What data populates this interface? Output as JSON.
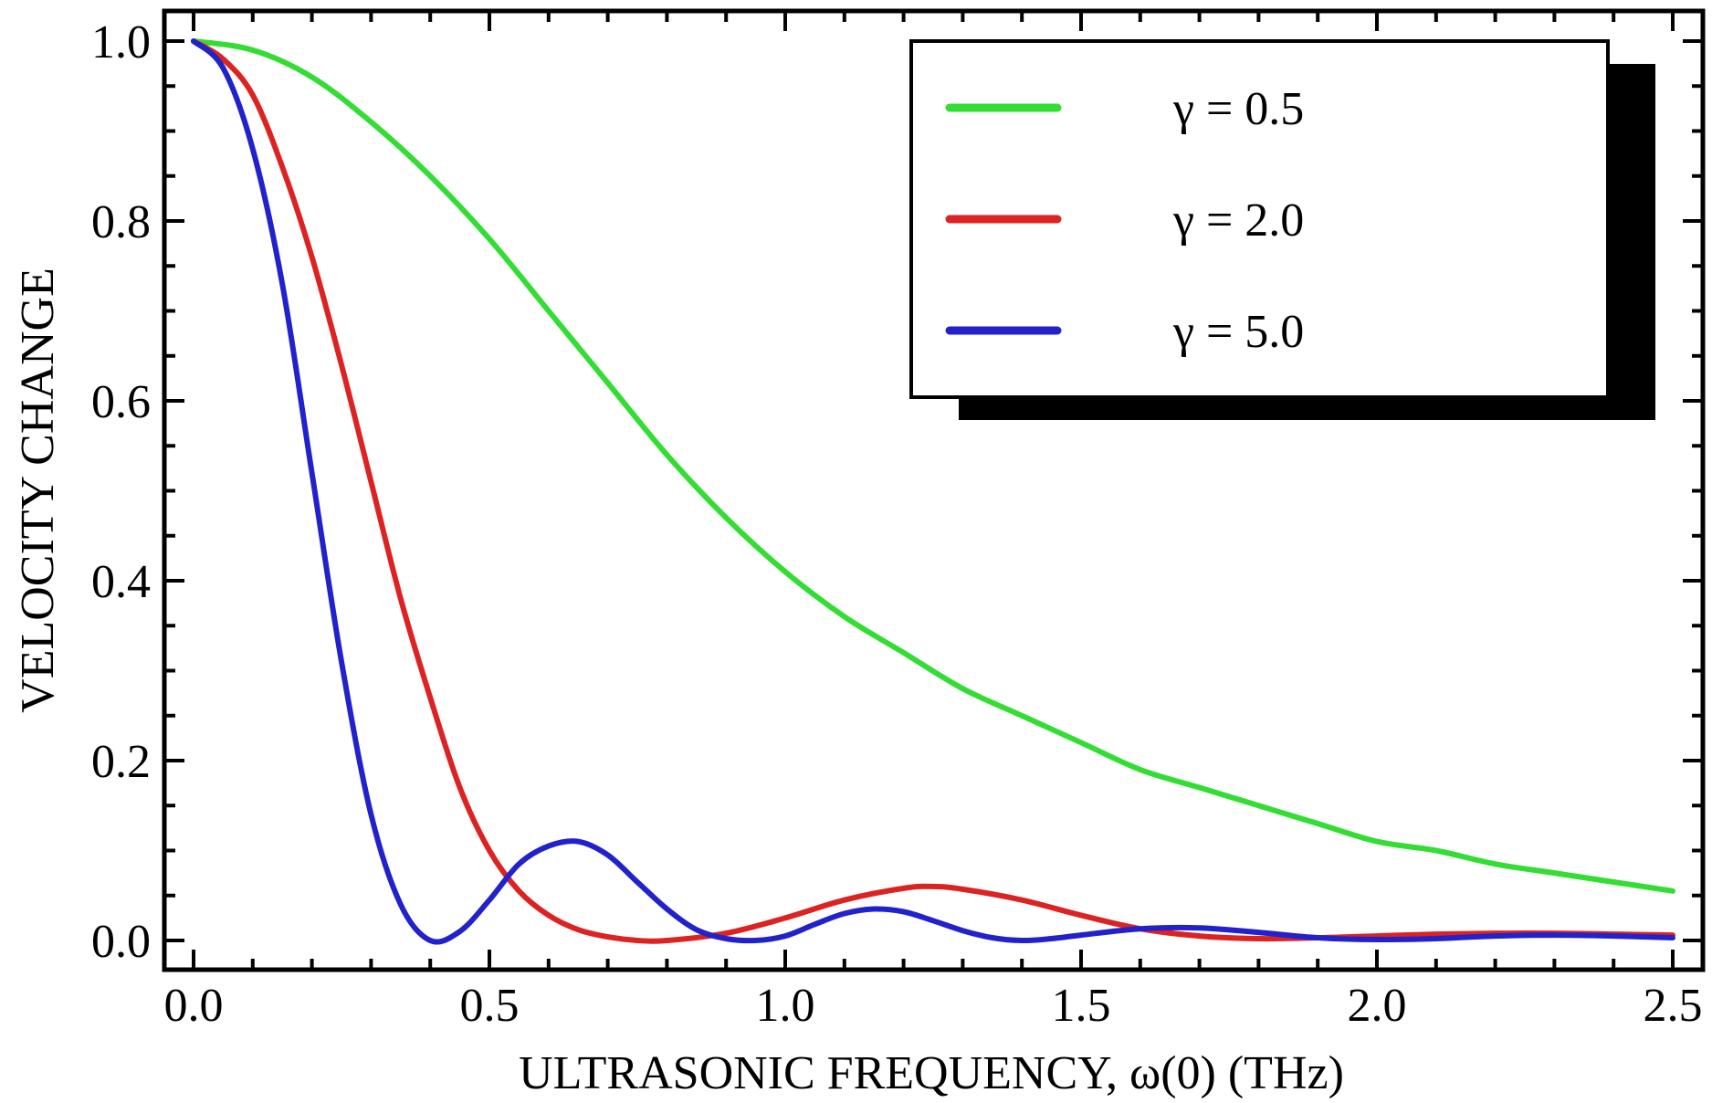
{
  "chart_data": {
    "type": "line",
    "title": "",
    "xlabel": "ULTRASONIC FREQUENCY, ω(0) (THz)",
    "ylabel": "VELOCITY CHANGE",
    "xlim": [
      0,
      2.5
    ],
    "ylim": [
      0,
      1.0
    ],
    "x_ticks": [
      "0.0",
      "0.5",
      "1.0",
      "1.5",
      "2.0",
      "2.5"
    ],
    "y_ticks": [
      "0.0",
      "0.2",
      "0.4",
      "0.6",
      "0.8",
      "1.0"
    ],
    "grid": false,
    "legend_position": "top-right",
    "series": [
      {
        "name": "γ = 0.5",
        "color": "#33dd33",
        "x": [
          0,
          0.1,
          0.2,
          0.3,
          0.4,
          0.5,
          0.6,
          0.7,
          0.8,
          0.9,
          1.0,
          1.1,
          1.2,
          1.3,
          1.4,
          1.5,
          1.6,
          1.7,
          1.8,
          1.9,
          2.0,
          2.1,
          2.2,
          2.3,
          2.4,
          2.5
        ],
        "y": [
          1.0,
          0.99,
          0.96,
          0.91,
          0.85,
          0.78,
          0.7,
          0.62,
          0.54,
          0.47,
          0.41,
          0.36,
          0.32,
          0.28,
          0.25,
          0.22,
          0.19,
          0.17,
          0.15,
          0.13,
          0.11,
          0.1,
          0.085,
          0.075,
          0.065,
          0.055
        ]
      },
      {
        "name": "γ = 2.0",
        "color": "#dd2222",
        "x": [
          0,
          0.05,
          0.1,
          0.15,
          0.2,
          0.25,
          0.3,
          0.35,
          0.4,
          0.45,
          0.5,
          0.55,
          0.6,
          0.65,
          0.7,
          0.75,
          0.8,
          0.9,
          1.0,
          1.1,
          1.2,
          1.25,
          1.3,
          1.4,
          1.5,
          1.6,
          1.7,
          1.8,
          1.9,
          2.0,
          2.1,
          2.2,
          2.3,
          2.4,
          2.5
        ],
        "y": [
          1.0,
          0.98,
          0.94,
          0.86,
          0.76,
          0.64,
          0.51,
          0.38,
          0.27,
          0.17,
          0.1,
          0.055,
          0.028,
          0.012,
          0.004,
          0.0,
          0.0,
          0.008,
          0.025,
          0.045,
          0.058,
          0.06,
          0.057,
          0.045,
          0.028,
          0.013,
          0.005,
          0.002,
          0.003,
          0.005,
          0.007,
          0.008,
          0.008,
          0.007,
          0.006
        ]
      },
      {
        "name": "γ = 5.0",
        "color": "#2222cc",
        "x": [
          0,
          0.05,
          0.1,
          0.15,
          0.2,
          0.25,
          0.3,
          0.35,
          0.4,
          0.45,
          0.5,
          0.55,
          0.6,
          0.65,
          0.7,
          0.75,
          0.8,
          0.85,
          0.9,
          0.95,
          1.0,
          1.05,
          1.1,
          1.15,
          1.2,
          1.25,
          1.3,
          1.35,
          1.4,
          1.45,
          1.5,
          1.6,
          1.7,
          1.8,
          1.9,
          2.0,
          2.1,
          2.2,
          2.3,
          2.4,
          2.5
        ],
        "y": [
          1.0,
          0.97,
          0.88,
          0.73,
          0.52,
          0.31,
          0.14,
          0.04,
          0.0,
          0.01,
          0.045,
          0.085,
          0.105,
          0.11,
          0.095,
          0.065,
          0.035,
          0.012,
          0.002,
          0.0,
          0.005,
          0.018,
          0.03,
          0.035,
          0.032,
          0.022,
          0.011,
          0.003,
          0.0,
          0.002,
          0.006,
          0.013,
          0.014,
          0.009,
          0.003,
          0.001,
          0.002,
          0.005,
          0.006,
          0.005,
          0.003
        ]
      }
    ]
  }
}
